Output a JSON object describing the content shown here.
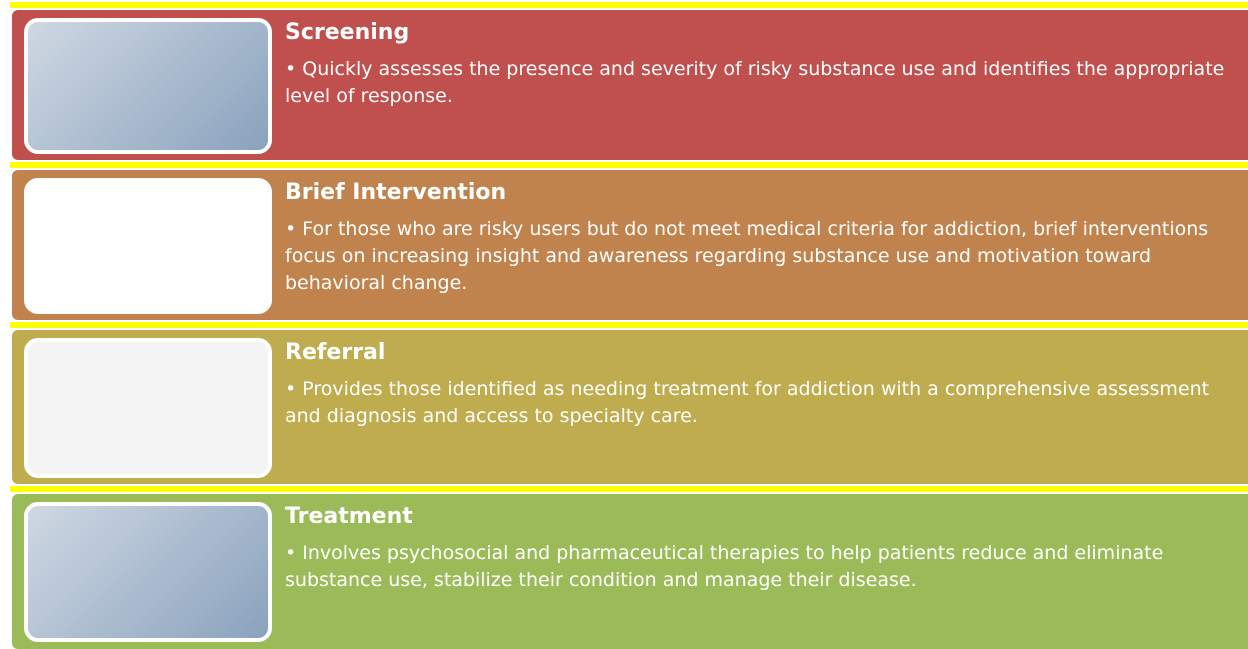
{
  "items": [
    {
      "title": "Screening",
      "text": "• Quickly assesses the presence and severity of risky substance use and identifies the appropriate level  of response."
    },
    {
      "title": "Brief Intervention",
      "text": "• For those who are risky users but do not meet medical criteria for addiction, brief interventions focus on increasing insight and awareness regarding substance use and motivation toward behavioral change."
    },
    {
      "title": "Referral",
      "text": "• Provides those identified as needing treatment for addiction with a comprehensive assessment and diagnosis and access to specialty care."
    },
    {
      "title": "Treatment",
      "text": "• Involves psychosocial and pharmaceutical therapies to help patients reduce and eliminate substance use, stabilize their condition and manage their disease."
    }
  ]
}
